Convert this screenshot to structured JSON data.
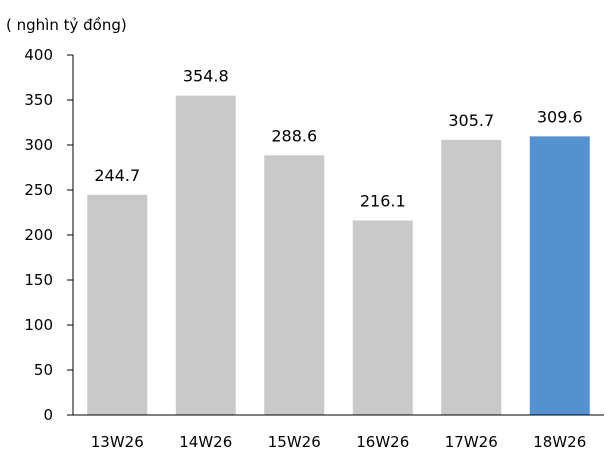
{
  "chart_data": {
    "type": "bar",
    "unit_label": "( nghìn tỷ đồng)",
    "categories": [
      "13W26",
      "14W26",
      "15W26",
      "16W26",
      "17W26",
      "18W26"
    ],
    "values": [
      244.7,
      354.8,
      288.6,
      216.1,
      305.7,
      309.6
    ],
    "data_labels": [
      "244.7",
      "354.8",
      "288.6",
      "216.1",
      "305.7",
      "309.6"
    ],
    "ylim": [
      0,
      400
    ],
    "yticks": [
      0,
      50,
      100,
      150,
      200,
      250,
      300,
      350,
      400
    ],
    "grid": false,
    "legend": "none",
    "colors": {
      "bar_default": "#c9c9c9",
      "bar_highlight": "#5591d1",
      "axis": "#000000"
    },
    "highlight_index": 5
  }
}
